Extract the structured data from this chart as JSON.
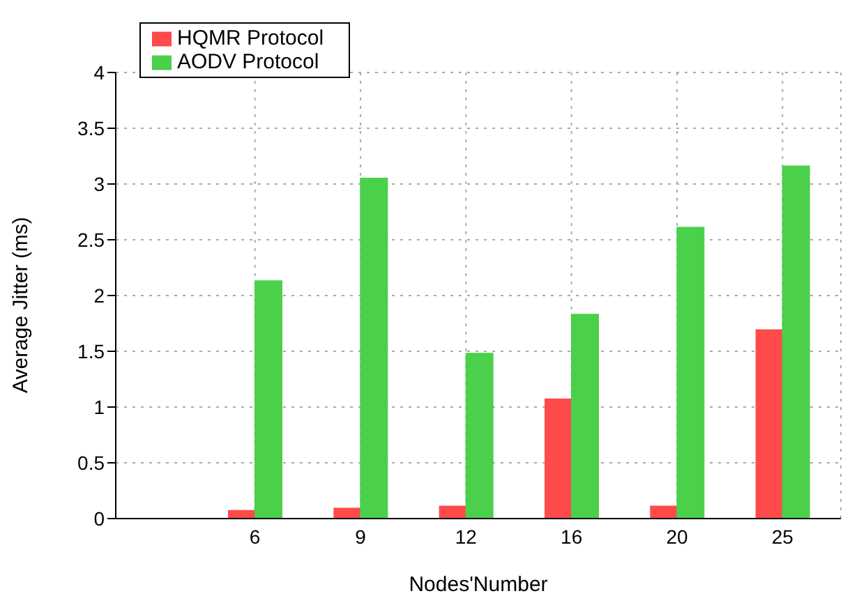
{
  "chart_data": {
    "type": "bar",
    "xlabel": "Nodes'Number",
    "ylabel": "Average Jitter (ms)",
    "categories": [
      "6",
      "9",
      "12",
      "16",
      "20",
      "25"
    ],
    "series": [
      {
        "name": "HQMR Protocol",
        "color": "#ff4a4a",
        "values": [
          0.07,
          0.09,
          0.11,
          1.07,
          0.11,
          1.69
        ]
      },
      {
        "name": "AODV Protocol",
        "color": "#4ad04a",
        "values": [
          2.13,
          3.05,
          1.48,
          1.83,
          2.61,
          3.16
        ]
      }
    ],
    "ylim": [
      0,
      4
    ],
    "yticks": [
      0,
      0.5,
      1,
      1.5,
      2,
      2.5,
      3,
      3.5,
      4
    ],
    "grid": true,
    "legend": "top left"
  }
}
